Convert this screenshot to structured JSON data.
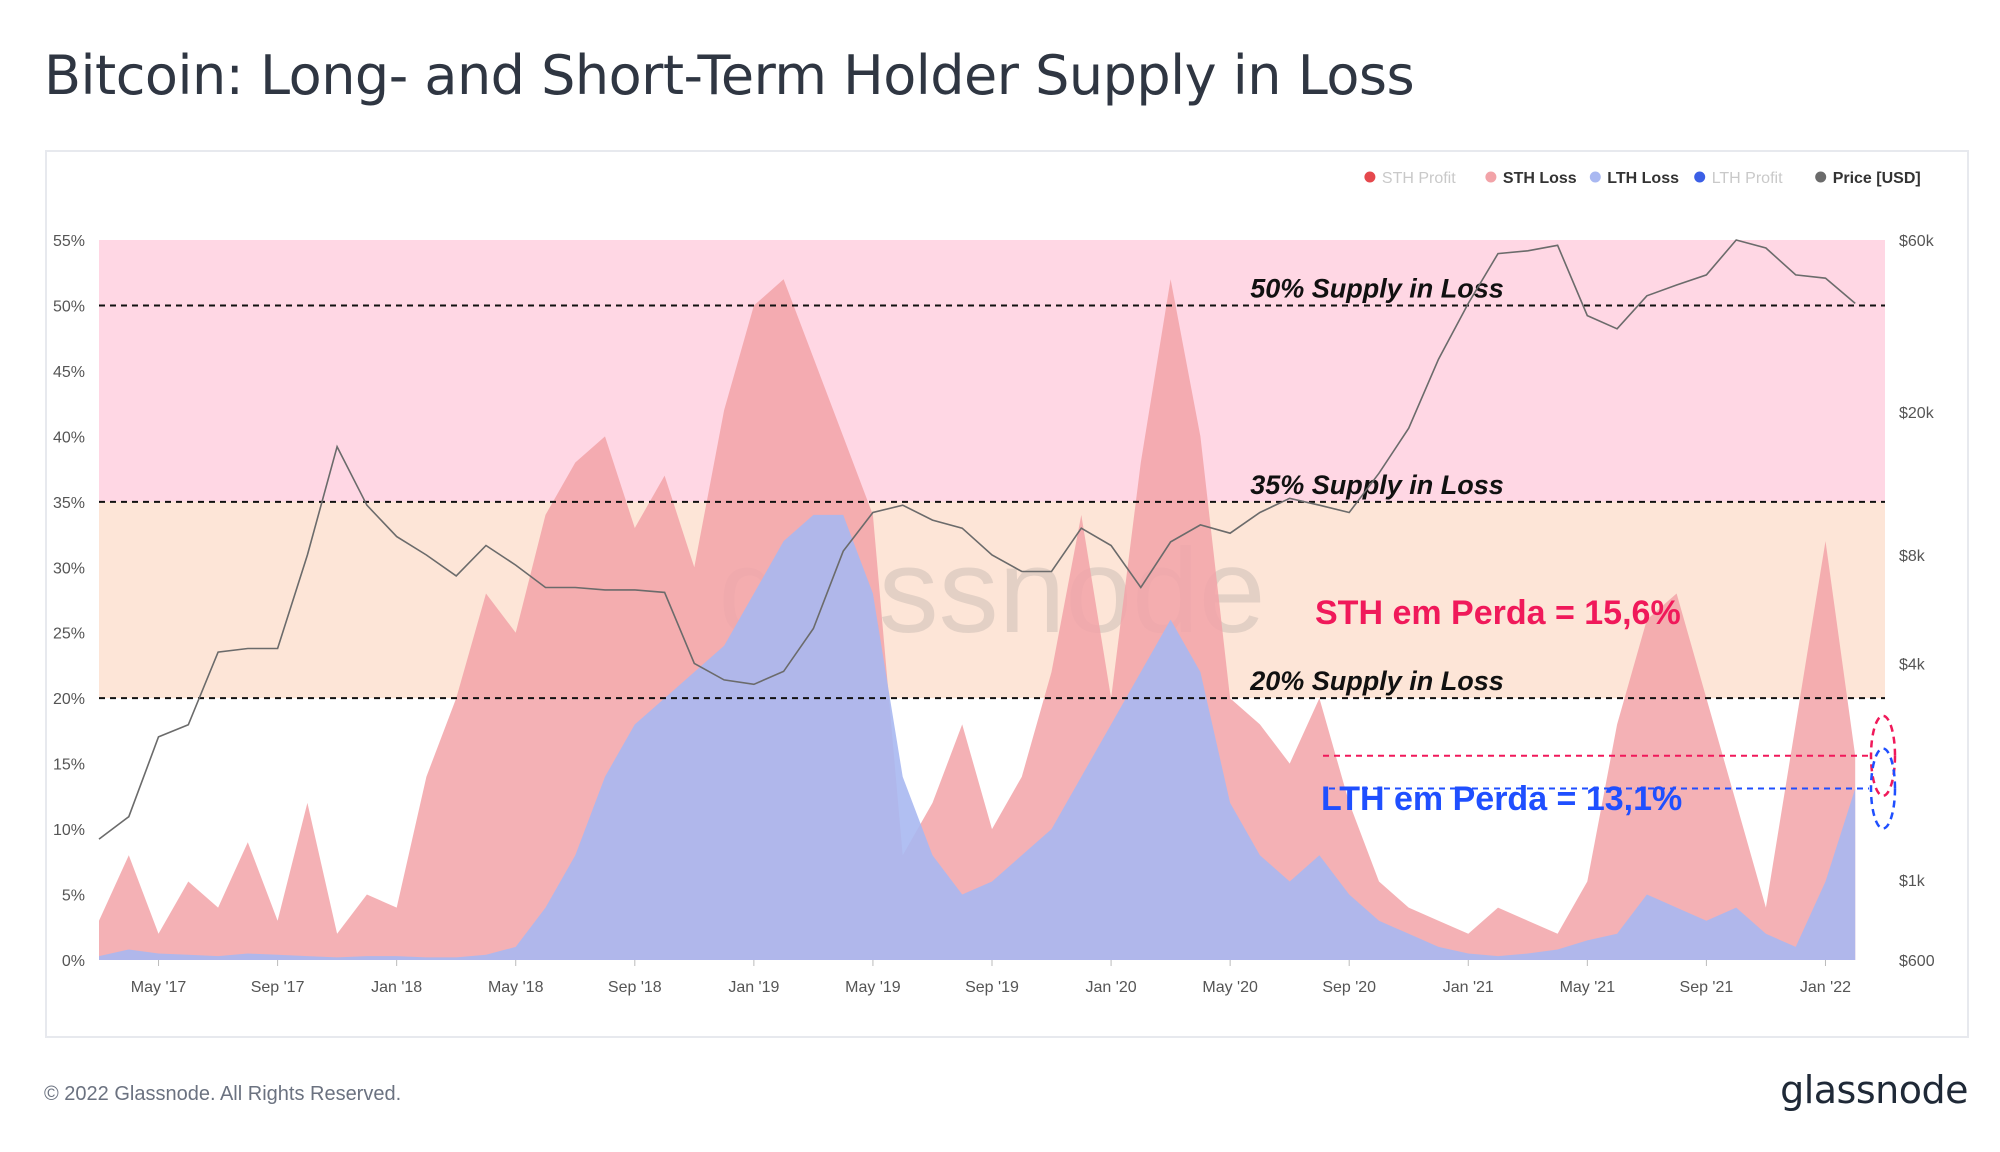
{
  "page": {
    "title": "Bitcoin: Long- and Short-Term Holder Supply in Loss",
    "copyright": "© 2022 Glassnode. All Rights Reserved.",
    "logo": "glassnode",
    "watermark": "glassnode"
  },
  "colors": {
    "sth_profit": "#e5484d",
    "sth_loss": "#f2a3a8",
    "lth_loss": "#a9b8f1",
    "lth_profit": "#3b5fe6",
    "price": "#6b6b6b",
    "band_high": "#ffd7e4",
    "band_mid": "#fde5d7",
    "sth_annotation": "#f0195a",
    "lth_annotation": "#1f4fff"
  },
  "chart_data": {
    "type": "area",
    "title": "Bitcoin: Long- and Short-Term Holder Supply in Loss",
    "legend_position": "top-right",
    "legend": [
      {
        "name": "STH Profit",
        "color": "#e5484d",
        "active": false
      },
      {
        "name": "STH Loss",
        "color": "#f2a3a8",
        "active": true
      },
      {
        "name": "LTH Loss",
        "color": "#a9b8f1",
        "active": true
      },
      {
        "name": "LTH Profit",
        "color": "#3b5fe6",
        "active": false
      },
      {
        "name": "Price [USD]",
        "color": "#6b6b6b",
        "active": true
      }
    ],
    "x_ticks": [
      "May '17",
      "Sep '17",
      "Jan '18",
      "May '18",
      "Sep '18",
      "Jan '19",
      "May '19",
      "Sep '19",
      "Jan '20",
      "May '20",
      "Sep '20",
      "Jan '21",
      "May '21",
      "Sep '21",
      "Jan '22"
    ],
    "x_tick_index": [
      2,
      6,
      10,
      14,
      18,
      22,
      26,
      30,
      34,
      38,
      42,
      46,
      50,
      54,
      58
    ],
    "x_range": [
      0,
      60
    ],
    "y_left": {
      "ticks": [
        "0%",
        "5%",
        "10%",
        "15%",
        "20%",
        "25%",
        "30%",
        "35%",
        "40%",
        "45%",
        "50%",
        "55%"
      ],
      "values": [
        0,
        5,
        10,
        15,
        20,
        25,
        30,
        35,
        40,
        45,
        50,
        55
      ],
      "range": [
        0,
        55
      ]
    },
    "y_right": {
      "ticks": [
        "$600",
        "$1k",
        "$4k",
        "$8k",
        "$20k",
        "$60k"
      ],
      "values": [
        600,
        1000,
        4000,
        8000,
        20000,
        60000
      ],
      "scale": "log",
      "range": [
        600,
        60000
      ]
    },
    "bands": [
      {
        "from": 35,
        "to": 55,
        "color": "#ffd7e4"
      },
      {
        "from": 20,
        "to": 35,
        "color": "#fde5d7"
      }
    ],
    "reference_lines": [
      {
        "y": 50,
        "label": "50% Supply in Loss"
      },
      {
        "y": 35,
        "label": "35% Supply in Loss"
      },
      {
        "y": 20,
        "label": "20% Supply in Loss"
      }
    ],
    "series": [
      {
        "name": "STH Loss",
        "values": [
          3,
          8,
          2,
          6,
          4,
          9,
          3,
          12,
          2,
          5,
          4,
          14,
          20,
          28,
          25,
          34,
          38,
          40,
          33,
          37,
          30,
          42,
          50,
          52,
          46,
          40,
          34,
          8,
          12,
          18,
          10,
          14,
          22,
          34,
          20,
          38,
          52,
          40,
          20,
          18,
          15,
          20,
          12,
          6,
          4,
          3,
          2,
          4,
          3,
          2,
          6,
          18,
          26,
          28,
          20,
          12,
          4,
          18,
          32,
          15.6
        ]
      },
      {
        "name": "LTH Loss",
        "values": [
          0.3,
          0.8,
          0.5,
          0.4,
          0.3,
          0.5,
          0.4,
          0.3,
          0.2,
          0.3,
          0.3,
          0.2,
          0.2,
          0.4,
          1,
          4,
          8,
          14,
          18,
          20,
          22,
          24,
          28,
          32,
          34,
          34,
          28,
          14,
          8,
          5,
          6,
          8,
          10,
          14,
          18,
          22,
          26,
          22,
          12,
          8,
          6,
          8,
          5,
          3,
          2,
          1,
          0.5,
          0.3,
          0.5,
          0.8,
          1.5,
          2,
          5,
          4,
          3,
          4,
          2,
          1,
          6,
          13.1
        ]
      },
      {
        "name": "Price [USD]",
        "values": [
          1300,
          1500,
          2500,
          2700,
          4300,
          4400,
          4400,
          8000,
          16000,
          11000,
          9000,
          8000,
          7000,
          8500,
          7500,
          6500,
          6500,
          6400,
          6400,
          6300,
          4000,
          3600,
          3500,
          3800,
          5000,
          8200,
          10500,
          11000,
          10000,
          9500,
          8000,
          7200,
          7200,
          9500,
          8500,
          6500,
          8700,
          9700,
          9200,
          10500,
          11500,
          11000,
          10500,
          13500,
          18000,
          28000,
          40000,
          55000,
          56000,
          58000,
          37000,
          34000,
          42000,
          45000,
          48000,
          60000,
          57000,
          48000,
          47000,
          40000
        ]
      }
    ],
    "annotations": [
      {
        "label": "STH em Perda = 15,6%",
        "value": 15.6,
        "color": "#f0195a"
      },
      {
        "label": "LTH em Perda = 13,1%",
        "value": 13.1,
        "color": "#1f4fff"
      }
    ]
  }
}
